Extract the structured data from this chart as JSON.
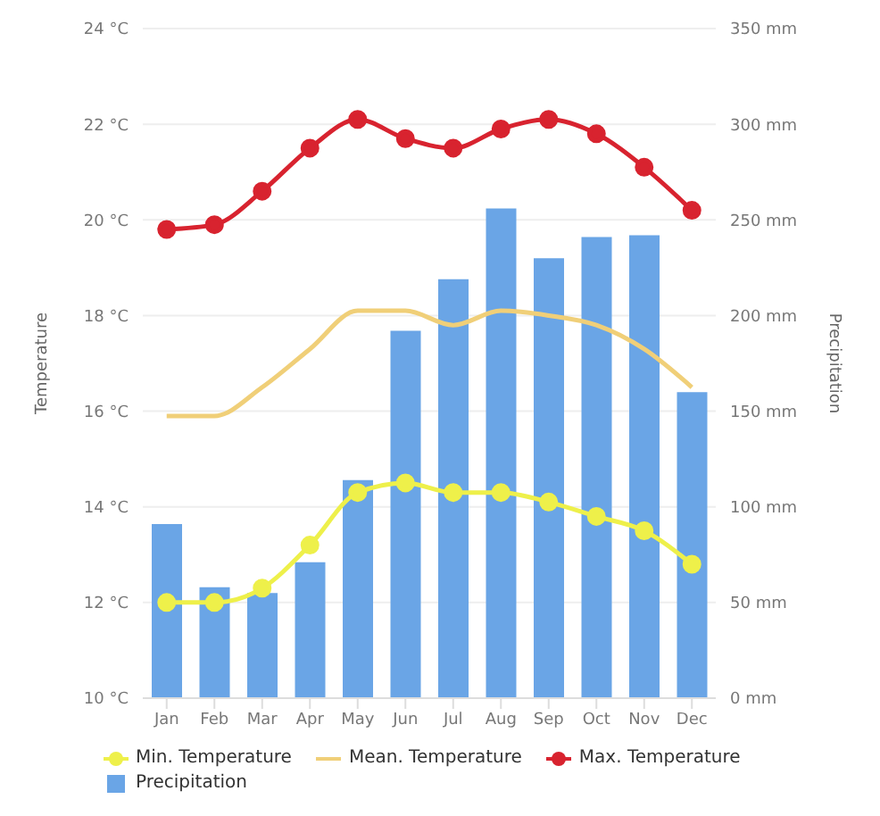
{
  "chart_data": {
    "type": "line",
    "xlabel": null,
    "ylabel": "Temperature",
    "y2label": "Precipitation",
    "categories": [
      "Jan",
      "Feb",
      "Mar",
      "Apr",
      "May",
      "Jun",
      "Jul",
      "Aug",
      "Sep",
      "Oct",
      "Nov",
      "Dec"
    ],
    "series": [
      {
        "name": "Min. Temperature",
        "color": "#eef04a",
        "marker": "circle",
        "values": [
          12.0,
          12.0,
          12.3,
          13.2,
          14.3,
          14.5,
          14.3,
          14.3,
          14.1,
          13.8,
          13.5,
          12.8
        ]
      },
      {
        "name": "Mean. Temperature",
        "color": "#f0cf78",
        "marker": "none",
        "values": [
          15.9,
          15.9,
          16.5,
          17.3,
          18.1,
          18.1,
          17.8,
          18.1,
          18.0,
          17.8,
          17.3,
          16.5
        ]
      },
      {
        "name": "Max. Temperature",
        "color": "#d8232f",
        "marker": "circle",
        "values": [
          19.8,
          19.9,
          20.6,
          21.5,
          22.1,
          21.7,
          21.5,
          21.9,
          22.1,
          21.8,
          21.1,
          20.2
        ]
      },
      {
        "name": "Precipitation",
        "type": "bar",
        "axis": "y2",
        "color": "#6aa5e6",
        "values": [
          91,
          58,
          55,
          71,
          114,
          192,
          219,
          256,
          230,
          241,
          242,
          160
        ]
      }
    ],
    "ylim": [
      10,
      24
    ],
    "yticks": [
      {
        "value": 10,
        "label": "10 °C"
      },
      {
        "value": 12,
        "label": "12 °C"
      },
      {
        "value": 14,
        "label": "14 °C"
      },
      {
        "value": 16,
        "label": "16 °C"
      },
      {
        "value": 18,
        "label": "18 °C"
      },
      {
        "value": 20,
        "label": "20 °C"
      },
      {
        "value": 22,
        "label": "22 °C"
      },
      {
        "value": 24,
        "label": "24 °C"
      }
    ],
    "y2lim": [
      0,
      350
    ],
    "y2ticks": [
      {
        "value": 0,
        "label": "0 mm"
      },
      {
        "value": 50,
        "label": "50 mm"
      },
      {
        "value": 100,
        "label": "100 mm"
      },
      {
        "value": 150,
        "label": "150 mm"
      },
      {
        "value": 200,
        "label": "200 mm"
      },
      {
        "value": 250,
        "label": "250 mm"
      },
      {
        "value": 300,
        "label": "300 mm"
      },
      {
        "value": 350,
        "label": "350 mm"
      }
    ],
    "grid": "y",
    "legend": "bottom"
  }
}
